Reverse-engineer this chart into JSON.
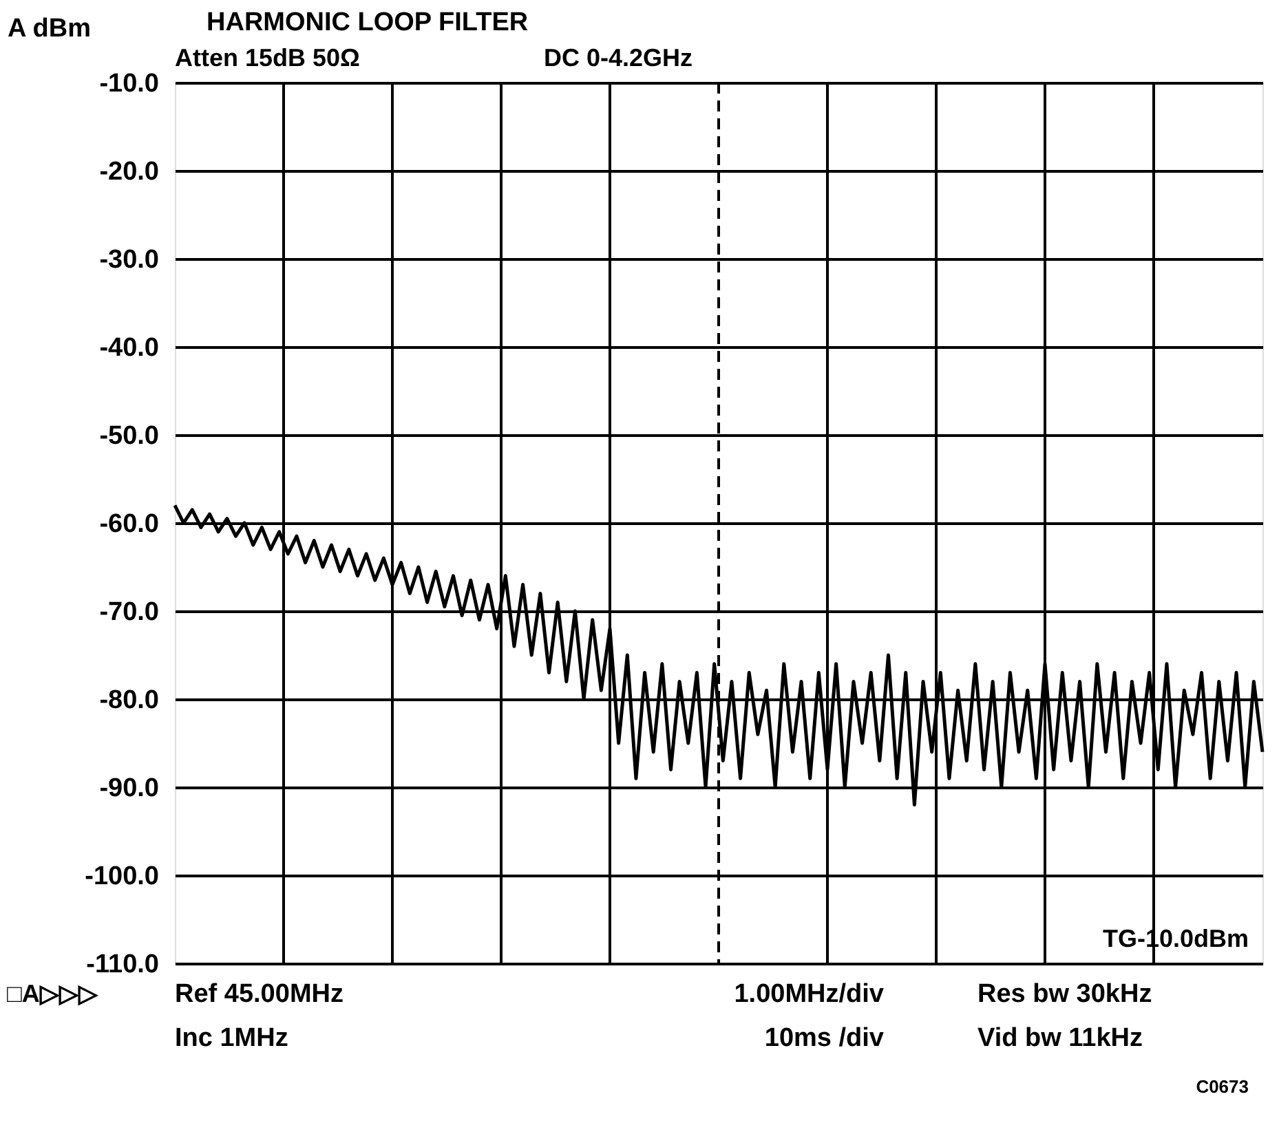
{
  "chart_data": {
    "type": "line",
    "title": "HARMONIC LOOP FILTER",
    "ylabel": "A dBm",
    "annotations": [
      "Atten 15dB 50Ω",
      "DC 0-4.2GHz",
      "TG-10.0dBm",
      "□A▷▷▷",
      "Ref 45.00MHz",
      "Inc 1MHz",
      "1.00MHz/div",
      "10ms /div",
      "Res bw 30kHz",
      "Vid bw 11kHz",
      "C0673"
    ],
    "categories": [
      null,
      null,
      null,
      null,
      null,
      null,
      null,
      null,
      null,
      null,
      null,
      null,
      null,
      null,
      null,
      null,
      null,
      null,
      null,
      null,
      null,
      null,
      null,
      null,
      null,
      null,
      null,
      null,
      null,
      null,
      null,
      null,
      null,
      null,
      null,
      null,
      null,
      null,
      null,
      null,
      null,
      null,
      null,
      null,
      null,
      null,
      null,
      null,
      null,
      null,
      null,
      null,
      null,
      null,
      null,
      null,
      null,
      null,
      null,
      null,
      null,
      null,
      null,
      null,
      null,
      null,
      null,
      null,
      null,
      null,
      null,
      null,
      null,
      null,
      null,
      null,
      null,
      null,
      null,
      null,
      null,
      null,
      null,
      null,
      null,
      null,
      null,
      null,
      null,
      null,
      null,
      null,
      null,
      null,
      null,
      null,
      null,
      null,
      null,
      null,
      null,
      null,
      null,
      null,
      null,
      null,
      null,
      null,
      null,
      null,
      null,
      null,
      null,
      null,
      null,
      null,
      null,
      null,
      null,
      null,
      null,
      null,
      null,
      null,
      null,
      null
    ],
    "series": [
      {
        "color": "#000000",
        "values": [
          -58,
          -60,
          -58.5,
          -60.5,
          -59,
          -61,
          -59.5,
          -61.5,
          -60,
          -62.5,
          -60.5,
          -63,
          -61,
          -63.5,
          -61.5,
          -64.5,
          -62,
          -65,
          -62.5,
          -65.5,
          -63,
          -66,
          -63.5,
          -66.5,
          -64,
          -67,
          -64.5,
          -68,
          -65,
          -69,
          -65.5,
          -69.5,
          -66,
          -70.5,
          -66.5,
          -71,
          -67,
          -72,
          -66,
          -74,
          -67,
          -75,
          -68,
          -77,
          -69,
          -78,
          -70,
          -80,
          -71,
          -79,
          -72,
          -85,
          -75,
          -89,
          -77,
          -86,
          -76,
          -88,
          -78,
          -85,
          -77,
          -90,
          -76,
          -87,
          -78,
          -89,
          -77,
          -84,
          -79,
          -90,
          -76,
          -86,
          -78,
          -89,
          -77,
          -88,
          -76,
          -90,
          -78,
          -85,
          -77,
          -87,
          -75,
          -89,
          -77,
          -92,
          -78,
          -86,
          -77,
          -89,
          -79,
          -87,
          -76,
          -88,
          -78,
          -90,
          -77,
          -86,
          -79,
          -89,
          -76,
          -88,
          -77,
          -87,
          -78,
          -90,
          -76,
          -86,
          -77,
          -89,
          -78,
          -85,
          -77,
          -88,
          -76,
          -90,
          -79,
          -84,
          -77,
          -89,
          -78,
          -87,
          -77,
          -90,
          -78,
          -86
        ]
      }
    ],
    "ylim": [
      -110,
      -10
    ],
    "yticks": [
      {
        "value": -10,
        "label": "-10.0"
      },
      {
        "value": -20,
        "label": "-20.0"
      },
      {
        "value": -30,
        "label": "-30.0"
      },
      {
        "value": -40,
        "label": "-40.0"
      },
      {
        "value": -50,
        "label": "-50.0"
      },
      {
        "value": -60,
        "label": "-60.0"
      },
      {
        "value": -70,
        "label": "-70.0"
      },
      {
        "value": -80,
        "label": "-80.0"
      },
      {
        "value": -90,
        "label": "-90.0"
      },
      {
        "value": -100,
        "label": "-100.0"
      },
      {
        "value": -110,
        "label": "-110.0"
      }
    ],
    "grid": true,
    "tick_labels": "y",
    "marker": "none",
    "line_style": "solid"
  }
}
